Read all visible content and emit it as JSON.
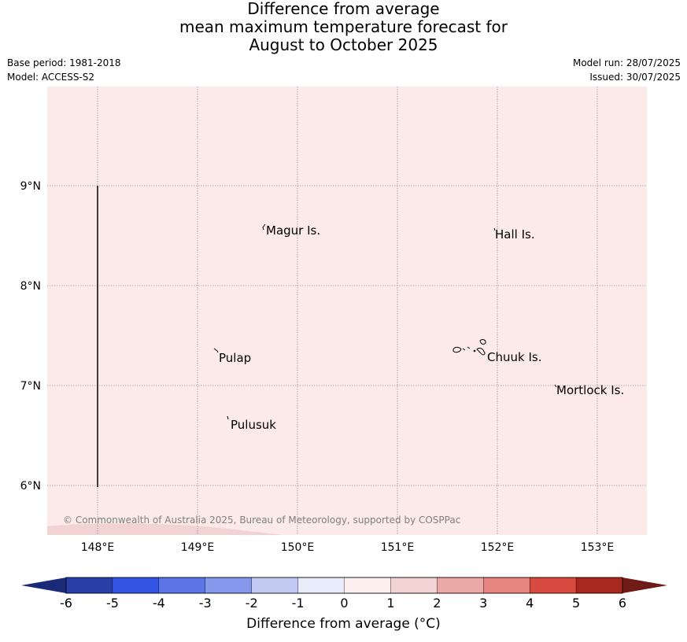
{
  "title": {
    "line1": "Difference from average",
    "line2": "mean maximum temperature forecast for",
    "line3": "August to October 2025"
  },
  "meta": {
    "base_period": "Base period: 1981-2018",
    "model": "Model: ACCESS-S2",
    "model_run": "Model run: 28/07/2025",
    "issued": "Issued: 30/07/2025"
  },
  "map": {
    "background_color": "#fbeae8",
    "lon_ticks": [
      "148°E",
      "149°E",
      "150°E",
      "151°E",
      "152°E",
      "153°E"
    ],
    "lat_ticks": [
      "9°N",
      "8°N",
      "7°N",
      "6°N"
    ],
    "places": [
      {
        "name": "Magur Is."
      },
      {
        "name": "Hall Is."
      },
      {
        "name": "Pulap"
      },
      {
        "name": "Chuuk Is."
      },
      {
        "name": "Mortlock Is."
      },
      {
        "name": "Pulusuk"
      }
    ],
    "copyright": "© Commonwealth of Australia 2025, Bureau of Meteorology, supported by COSPPac"
  },
  "colorbar": {
    "ticks": [
      "-6",
      "-5",
      "-4",
      "-3",
      "-2",
      "-1",
      "0",
      "1",
      "2",
      "3",
      "4",
      "5",
      "6"
    ],
    "colors": [
      "#2a3ea8",
      "#3355e6",
      "#5b75e6",
      "#8598ec",
      "#c2c9f2",
      "#e9ecfa",
      "#fdf0ef",
      "#f1d3d3",
      "#eca8a4",
      "#e78580",
      "#d84a3f",
      "#a8281f"
    ],
    "under_color": "#1b2a78",
    "over_color": "#6f1b17",
    "label": "Difference from average (°C)"
  }
}
